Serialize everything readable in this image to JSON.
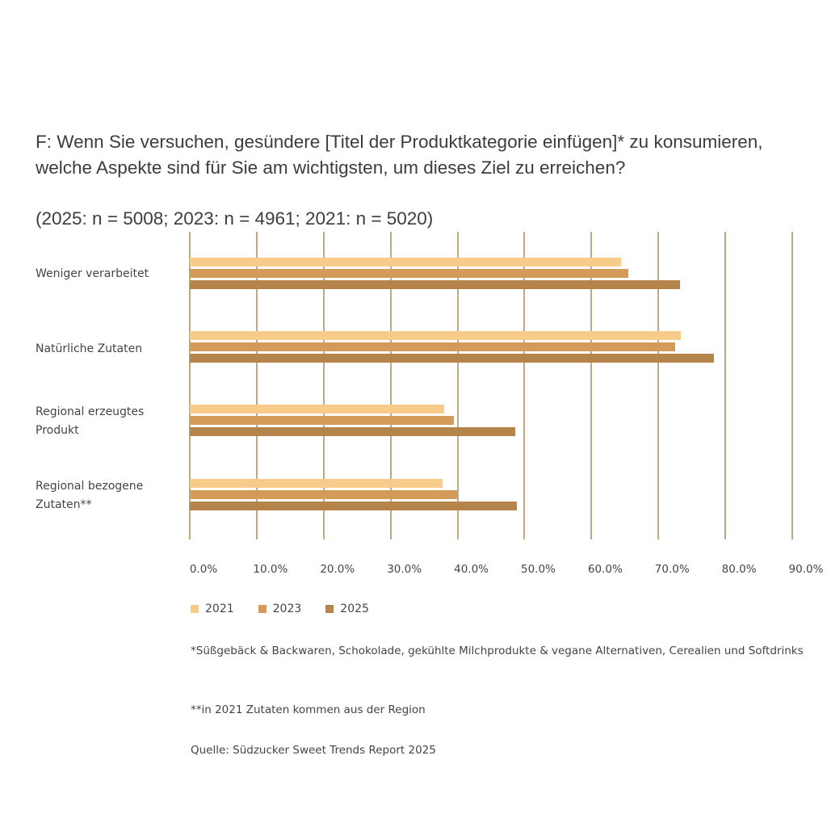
{
  "title": "F: Wenn Sie versuchen, gesündere [Titel der Produktkategorie einfügen]* zu konsumieren, welche Aspekte sind für Sie am wichtigsten, um dieses Ziel zu erreichen?",
  "subtitle": "(2025: n = 5008; 2023: n = 4961; 2021: n = 5020)",
  "colors": {
    "2021": "#F7CB8A",
    "2023": "#D49A5A",
    "2025": "#B5844A",
    "grid": "#BFA97F"
  },
  "legend": [
    "2021",
    "2023",
    "2025"
  ],
  "footnotes": {
    "note1": "*Süßgebäck & Backwaren, Schokolade, gekühlte Milchprodukte & vegane Alternativen, Cerealien und Softdrinks",
    "note2": "**in 2021 Zutaten kommen aus der Region",
    "source": "Quelle: Südzucker Sweet Trends Report 2025"
  },
  "chart_data": {
    "type": "bar",
    "orientation": "horizontal",
    "title": "F: Wenn Sie versuchen, gesündere [Titel der Produktkategorie einfügen]* zu konsumieren, welche Aspekte sind für Sie am wichtigsten, um dieses Ziel zu erreichen?",
    "subtitle": "(2025: n = 5008; 2023: n = 4961; 2021: n = 5020)",
    "categories": [
      "Weniger verarbeitet",
      "Natürliche Zutaten",
      "Regional erzeugtes Produkt",
      "Regional bezogene Zutaten**"
    ],
    "series": [
      {
        "name": "2021",
        "values": [
          64.4,
          73.3,
          38.0,
          37.8
        ]
      },
      {
        "name": "2023",
        "values": [
          65.5,
          72.5,
          39.4,
          39.9
        ]
      },
      {
        "name": "2025",
        "values": [
          73.2,
          78.3,
          48.6,
          48.9
        ]
      }
    ],
    "xlabel": "",
    "ylabel": "",
    "xlim": [
      0,
      90
    ],
    "xticks": [
      "0.0%",
      "10.0%",
      "20.0%",
      "30.0%",
      "40.0%",
      "50.0%",
      "60.0%",
      "70.0%",
      "80.0%",
      "90.0%"
    ],
    "grid": true,
    "legend_position": "bottom-left"
  }
}
